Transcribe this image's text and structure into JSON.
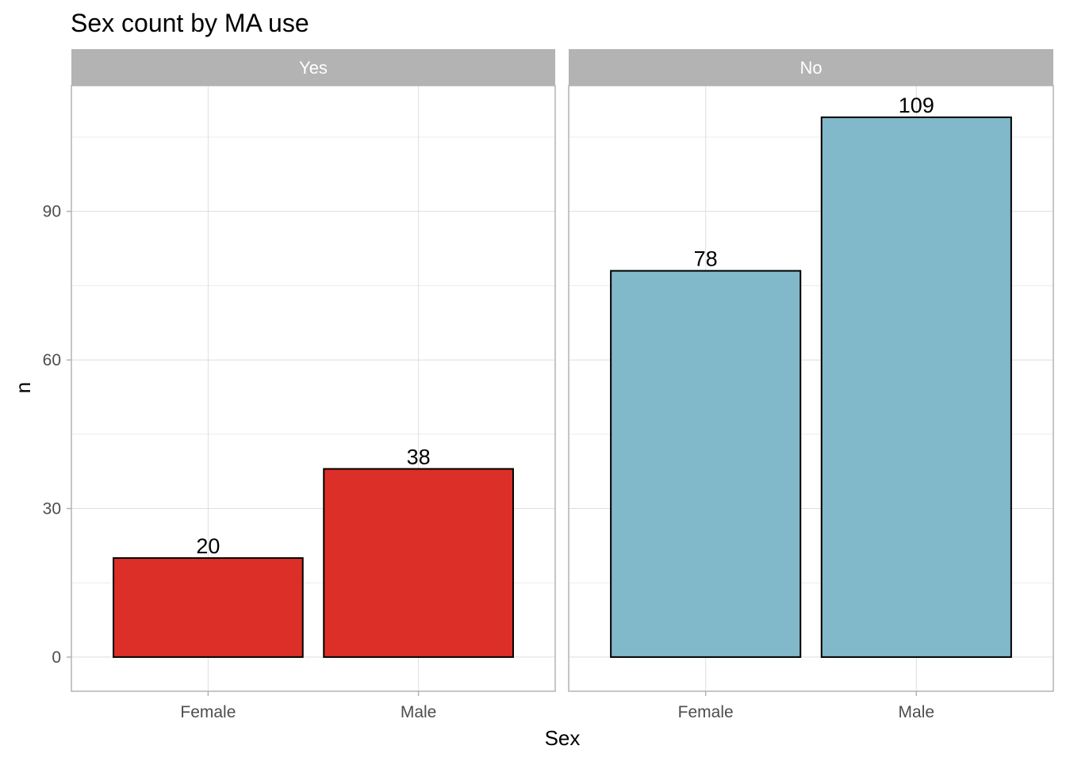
{
  "chart_data": {
    "type": "bar",
    "title": "Sex count by MA use",
    "xlabel": "Sex",
    "ylabel": "n",
    "categories": [
      "Female",
      "Male"
    ],
    "ylim": [
      -6.9,
      115.4
    ],
    "yticks": [
      0,
      30,
      60,
      90
    ],
    "grid": true,
    "legend": "none",
    "facets": [
      {
        "label": "Yes",
        "color": "#DC2F27",
        "values": [
          20,
          38
        ]
      },
      {
        "label": "No",
        "color": "#81B8CA",
        "values": [
          78,
          109
        ]
      }
    ]
  }
}
